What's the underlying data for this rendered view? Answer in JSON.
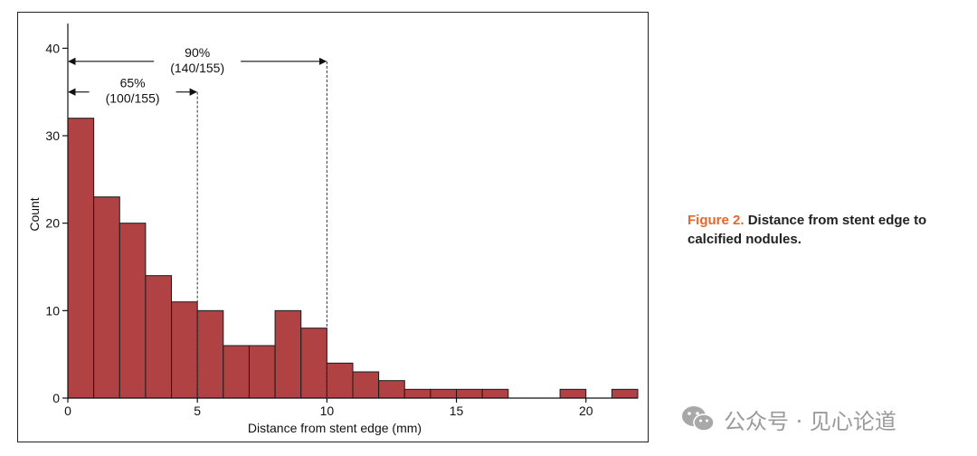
{
  "chart_data": {
    "type": "bar",
    "xlabel": "Distance from stent edge (mm)",
    "ylabel": "Count",
    "bin_width": 1,
    "bins_start": [
      0,
      1,
      2,
      3,
      4,
      5,
      6,
      7,
      8,
      9,
      10,
      11,
      12,
      13,
      14,
      15,
      16,
      17,
      18,
      19,
      20,
      21
    ],
    "values": [
      32,
      23,
      20,
      14,
      11,
      10,
      6,
      6,
      10,
      8,
      4,
      3,
      2,
      1,
      1,
      1,
      1,
      0,
      0,
      1,
      0,
      1
    ],
    "xlim": [
      0,
      22
    ],
    "ylim": [
      0,
      42
    ],
    "xticks": [
      0,
      5,
      10,
      15,
      20
    ],
    "yticks": [
      0,
      10,
      20,
      30,
      40
    ],
    "bar_color": "#b04244",
    "annotations": [
      {
        "x_from": 0,
        "x_to": 10,
        "y": 38.5,
        "label_line1": "90%",
        "label_line2": "(140/155)"
      },
      {
        "x_from": 0,
        "x_to": 5,
        "y": 35,
        "label_line1": "65%",
        "label_line2": "(100/155)"
      }
    ],
    "grid": false
  },
  "caption": {
    "label": "Figure 2.",
    "text": "Distance from stent edge to calcified nodules."
  },
  "watermark": {
    "icon": "wechat-icon",
    "text": "公众号 · 见心论道"
  }
}
